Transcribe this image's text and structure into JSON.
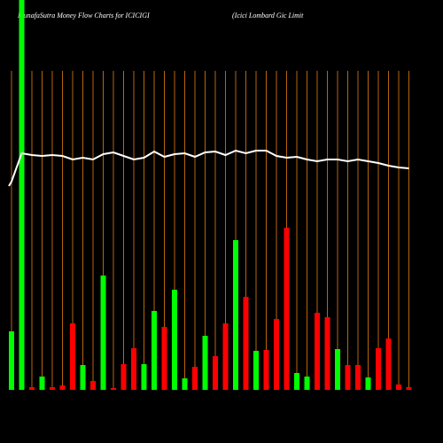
{
  "chart_data": {
    "type": "bar",
    "title": "MunafaSutra  Money Flow  Charts for ICICIGI",
    "subtitle": "(Icici   Lombard Gic Limit",
    "categories": [
      null,
      null,
      null,
      null,
      null,
      null,
      null,
      null,
      null,
      null,
      null,
      null,
      null,
      null,
      null,
      null,
      null,
      null,
      null,
      null,
      null,
      null,
      null,
      null,
      null,
      null,
      null,
      null,
      null,
      null,
      null,
      null,
      null,
      null,
      null,
      null,
      null,
      null,
      null,
      null
    ],
    "values": [
      66,
      440,
      3,
      15,
      3,
      5,
      75,
      28,
      10,
      129,
      2,
      29,
      47,
      29,
      89,
      71,
      113,
      13,
      26,
      61,
      38,
      75,
      169,
      105,
      44,
      45,
      80,
      183,
      19,
      15,
      87,
      82,
      46,
      28,
      28,
      14,
      47,
      58,
      6,
      3
    ],
    "bar_colors": [
      "#00ff00",
      "#00ff00",
      "#ff0000",
      "#00ff00",
      "#ff0000",
      "#ff0000",
      "#ff0000",
      "#00ff00",
      "#ff0000",
      "#00ff00",
      "#ff0000",
      "#ff0000",
      "#ff0000",
      "#00ff00",
      "#00ff00",
      "#ff0000",
      "#00ff00",
      "#00ff00",
      "#ff0000",
      "#00ff00",
      "#ff0000",
      "#ff0000",
      "#00ff00",
      "#ff0000",
      "#00ff00",
      "#ff0000",
      "#ff0000",
      "#ff0000",
      "#00ff00",
      "#00ff00",
      "#ff0000",
      "#ff0000",
      "#00ff00",
      "#ff0000",
      "#ff0000",
      "#00ff00",
      "#ff0000",
      "#ff0000",
      "#ff0000",
      "#ff0000"
    ],
    "line": {
      "color": "#ffffff",
      "values": [
        235,
        267,
        265,
        264,
        265,
        264,
        260,
        262,
        260,
        266,
        268,
        264,
        260,
        262,
        269,
        263,
        266,
        267,
        263,
        268,
        269,
        265,
        270,
        267,
        270,
        270,
        264,
        262,
        263,
        260,
        258,
        260,
        260,
        258,
        260,
        258,
        256,
        253,
        251,
        250
      ]
    },
    "ylim": [
      0,
      440
    ],
    "grid_color": "#b8650b"
  }
}
